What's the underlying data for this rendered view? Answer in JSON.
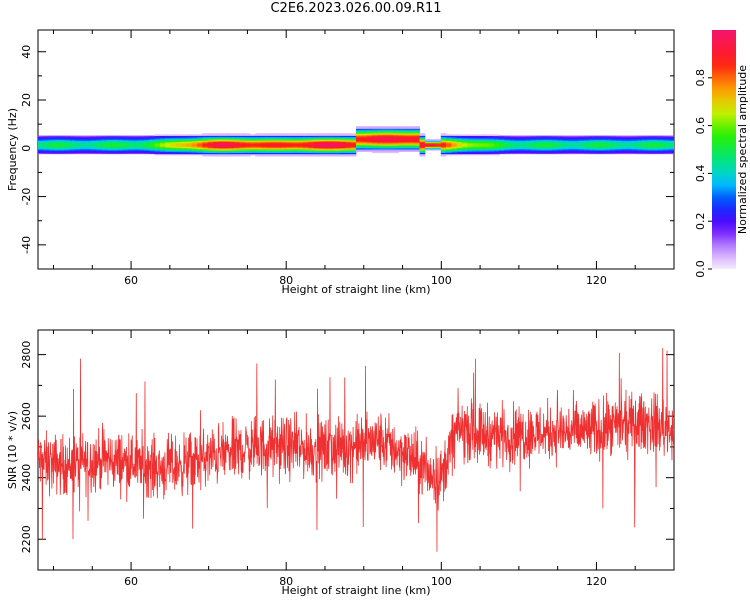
{
  "title": "C2E6.2023.026.00.09.R11",
  "chart_data": [
    {
      "type": "heatmap",
      "xlabel": "Height of straight line (km)",
      "ylabel": "Frequency (Hz)",
      "xlim": [
        48,
        130
      ],
      "ylim": [
        -50,
        49
      ],
      "xticks": [
        60,
        80,
        100,
        120
      ],
      "yticks": [
        -40,
        -20,
        0,
        20,
        40
      ],
      "colorbar": {
        "label": "Normalized spectral amplitude",
        "range": [
          0,
          1
        ],
        "ticks": [
          "0.0",
          "0.2",
          "0.4",
          "0.6",
          "0.8"
        ],
        "colormap": "rainbow (violet/white at 0 to red/magenta at 1)"
      },
      "band": {
        "description": "narrow band of spectral energy centred near 0 Hz across all heights",
        "center_freq_hz": 1,
        "half_width_hz": 4,
        "peak_heights_km": [
          72,
          85,
          97
        ],
        "disturbance_height_km": 99
      }
    },
    {
      "type": "line",
      "xlabel": "Height of straight line (km)",
      "ylabel": "SNR (10 * v/v)",
      "xlim": [
        48,
        130
      ],
      "ylim": [
        2100,
        2880
      ],
      "xticks": [
        60,
        80,
        100,
        120
      ],
      "yticks": [
        2200,
        2400,
        2600,
        2800
      ],
      "color": "#f03030",
      "series": [
        {
          "x": [
            48,
            52,
            56,
            60,
            64,
            68,
            72,
            76,
            80,
            84,
            88,
            92,
            96,
            98,
            100,
            102,
            106,
            110,
            114,
            118,
            122,
            126,
            130
          ],
          "y": [
            2450,
            2440,
            2460,
            2450,
            2430,
            2450,
            2480,
            2500,
            2500,
            2490,
            2500,
            2520,
            2470,
            2420,
            2400,
            2560,
            2540,
            2540,
            2550,
            2550,
            2560,
            2580,
            2560
          ],
          "noise_amplitude": 130
        }
      ]
    }
  ]
}
